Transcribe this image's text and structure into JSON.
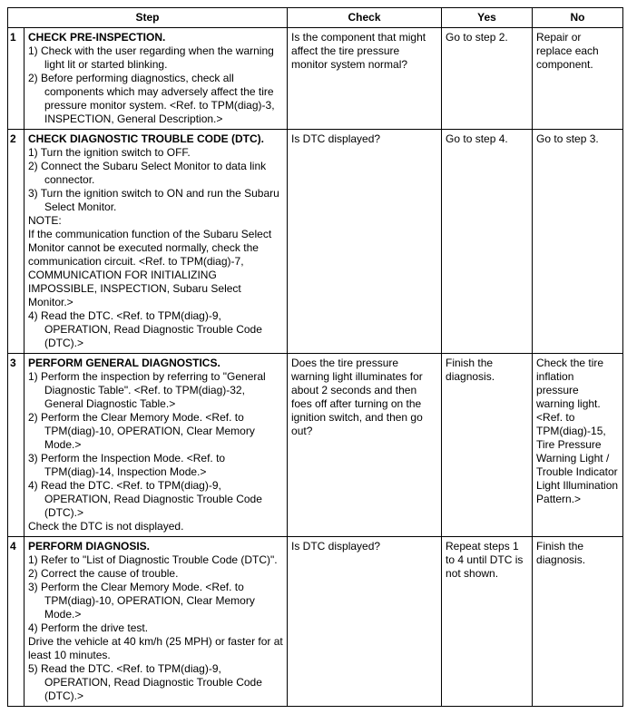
{
  "columns": {
    "step": "Step",
    "check": "Check",
    "yes": "Yes",
    "no": "No"
  },
  "rows": [
    {
      "num": "1",
      "title": "CHECK PRE-INSPECTION.",
      "lines": [
        "1)  Check with the user regarding when the warning light lit or started blinking.",
        "2)  Before performing diagnostics, check all components which may adversely affect the tire pressure monitor system. <Ref. to TPM(diag)-3, INSPECTION, General Description.>"
      ],
      "check": "Is the component that might affect the tire pressure monitor system normal?",
      "yes": "Go to step 2.",
      "no": "Repair or replace each component."
    },
    {
      "num": "2",
      "title": "CHECK DIAGNOSTIC TROUBLE CODE (DTC).",
      "lines": [
        "1)  Turn the ignition switch to OFF.",
        "2)  Connect the Subaru Select Monitor to data link connector.",
        "3)  Turn the ignition switch to ON and run the Subaru Select Monitor.",
        "NOTE:",
        "If the communication function of the Subaru Select Monitor cannot be executed normally, check the communication circuit. <Ref. to TPM(diag)-7, COMMUNICATION FOR INITIALIZING IMPOSSIBLE, INSPECTION, Subaru Select Monitor.>",
        "4)  Read the DTC. <Ref. to TPM(diag)-9, OPERATION, Read Diagnostic Trouble Code (DTC).>"
      ],
      "check": "Is DTC displayed?",
      "yes": "Go to step 4.",
      "no": "Go to step 3."
    },
    {
      "num": "3",
      "title": "PERFORM GENERAL DIAGNOSTICS.",
      "lines": [
        "1)  Perform the inspection by referring to \"General Diagnostic Table\". <Ref. to TPM(diag)-32, General Diagnostic Table.>",
        "2)  Perform the Clear Memory Mode. <Ref. to TPM(diag)-10, OPERATION, Clear Memory Mode.>",
        "3)  Perform the Inspection Mode. <Ref. to TPM(diag)-14, Inspection Mode.>",
        "4)  Read the DTC. <Ref. to TPM(diag)-9, OPERATION, Read Diagnostic Trouble Code (DTC).>",
        "Check the DTC is not displayed."
      ],
      "check": "Does the tire pressure warning light illuminates for about 2 seconds and then foes off after turning on the ignition switch, and then go out?",
      "yes": "Finish the diagnosis.",
      "no": "Check the tire inflation pressure warning light. <Ref. to TPM(diag)-15, Tire Pressure Warning Light / Trouble Indicator Light Illumination Pattern.>"
    },
    {
      "num": "4",
      "title": "PERFORM DIAGNOSIS.",
      "lines": [
        "1)  Refer to \"List of Diagnostic Trouble Code (DTC)\".",
        "2)  Correct the cause of trouble.",
        "3)  Perform the Clear Memory Mode. <Ref. to TPM(diag)-10, OPERATION, Clear Memory Mode.>",
        "4)  Perform the drive test.",
        "Drive the vehicle at 40 km/h (25 MPH) or faster for at least 10 minutes.",
        "5)  Read the DTC. <Ref. to TPM(diag)-9, OPERATION, Read Diagnostic Trouble Code (DTC).>"
      ],
      "check": "Is DTC displayed?",
      "yes": "Repeat steps 1 to 4 until DTC is not shown.",
      "no": "Finish the diagnosis."
    }
  ]
}
